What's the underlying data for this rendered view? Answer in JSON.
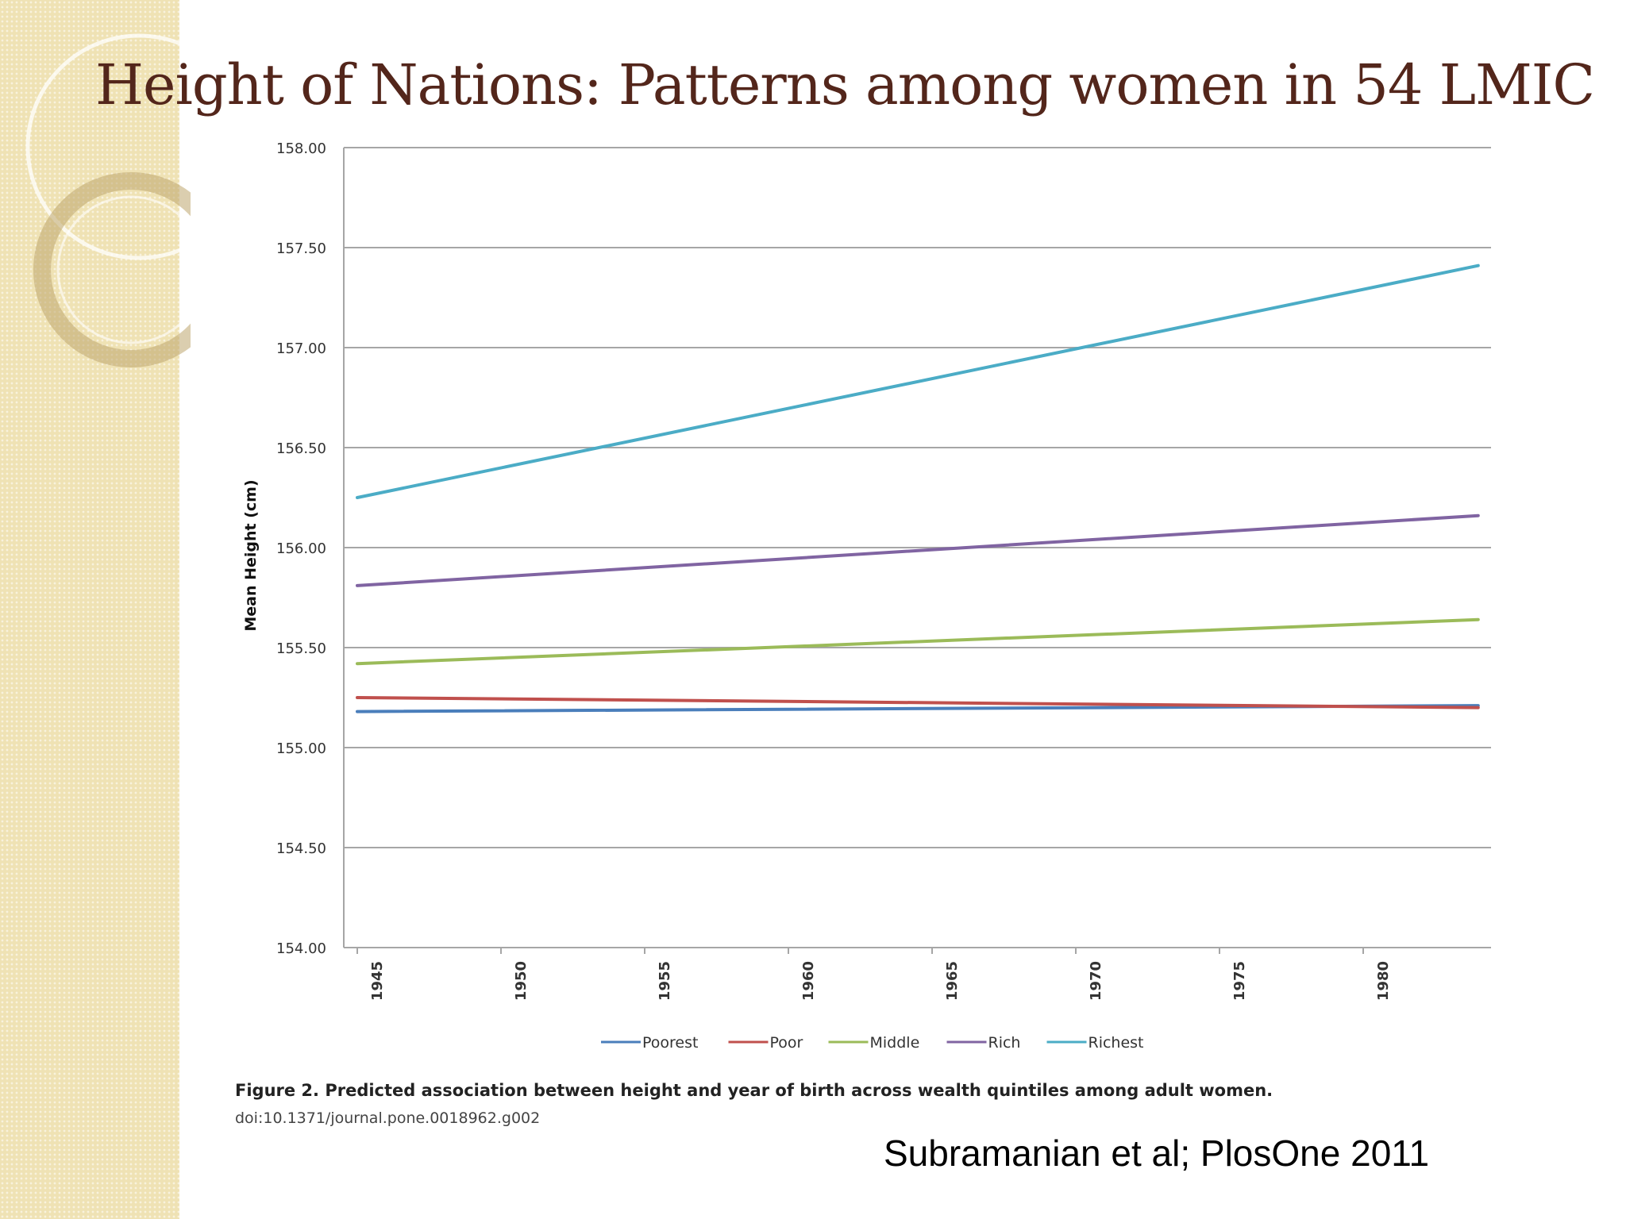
{
  "slide": {
    "title": "Height of Nations: Patterns among women in 54 LMIC",
    "caption": "Figure 2. Predicted association between height and year of birth across wealth quintiles among adult women.",
    "doi": "doi:10.1371/journal.pone.0018962.g002",
    "citation": "Subramanian et al; PlosOne 2011"
  },
  "colors": {
    "title": "#53261b",
    "band": "#efe2b4",
    "grid": "#a6a6a6"
  },
  "chart_data": {
    "type": "line",
    "title": "",
    "xlabel": "",
    "ylabel": "Mean Height (cm)",
    "xlim": [
      1945,
      1984
    ],
    "ylim": [
      154.0,
      158.0
    ],
    "x_ticks": [
      "1945",
      "1950",
      "1955",
      "1960",
      "1965",
      "1970",
      "1975",
      "1980"
    ],
    "y_ticks": [
      "154.00",
      "154.50",
      "155.00",
      "155.50",
      "156.00",
      "156.50",
      "157.00",
      "157.50",
      "158.00"
    ],
    "grid": true,
    "legend_position": "bottom",
    "x": [
      1945,
      1984
    ],
    "series": [
      {
        "name": "Poorest",
        "color": "#4a7ebb",
        "values": [
          155.18,
          155.21
        ]
      },
      {
        "name": "Poor",
        "color": "#c0504d",
        "values": [
          155.25,
          155.2
        ]
      },
      {
        "name": "Middle",
        "color": "#9bbb59",
        "values": [
          155.42,
          155.64
        ]
      },
      {
        "name": "Rich",
        "color": "#8064a2",
        "values": [
          155.81,
          156.16
        ]
      },
      {
        "name": "Richest",
        "color": "#4bacc6",
        "values": [
          156.25,
          157.41
        ]
      }
    ]
  }
}
